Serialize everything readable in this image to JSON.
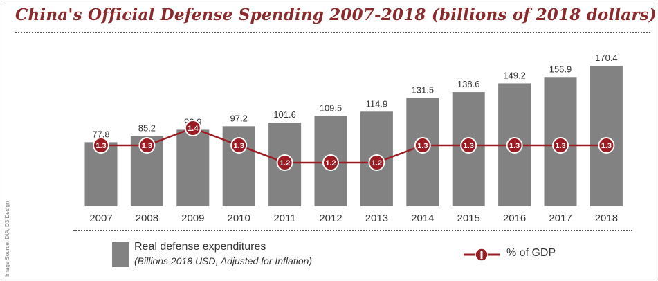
{
  "title": "China's Official Defense Spending 2007-2018 (billions of 2018 dollars)",
  "source_credit": "Image Source: DIA, D3 Design",
  "colors": {
    "bar": "#828282",
    "line": "#9b1c22",
    "title": "#8b2a2c"
  },
  "legend": {
    "bars_label": "Real defense expenditures",
    "bars_sublabel": "(Billions 2018 USD, Adjusted for Inflation)",
    "line_label": "% of GDP"
  },
  "chart_data": {
    "type": "bar",
    "title": "China's Official Defense Spending 2007-2018 (billions of 2018 dollars)",
    "categories": [
      "2007",
      "2008",
      "2009",
      "2010",
      "2011",
      "2012",
      "2013",
      "2014",
      "2015",
      "2016",
      "2017",
      "2018"
    ],
    "series": [
      {
        "name": "Real defense expenditures",
        "values": [
          77.8,
          85.2,
          92.9,
          97.2,
          101.6,
          109.5,
          114.9,
          131.5,
          138.6,
          149.2,
          156.9,
          170.4
        ]
      },
      {
        "name": "% of GDP",
        "type": "line",
        "values": [
          1.3,
          1.3,
          1.4,
          1.3,
          1.2,
          1.2,
          1.2,
          1.3,
          1.3,
          1.3,
          1.3,
          1.3
        ]
      }
    ],
    "bar_value_labels": [
      "77.8",
      "85.2",
      "92.9",
      "97.2",
      "101.6",
      "109.5",
      "114.9",
      "131.5",
      "138.6",
      "149.2",
      "156.9",
      "170.4"
    ],
    "gdp_value_labels": [
      "1.3",
      "1.3",
      "1.4",
      "1.3",
      "1.2",
      "1.2",
      "1.2",
      "1.3",
      "1.3",
      "1.3",
      "1.3",
      "1.3"
    ],
    "legend_position": "bottom",
    "grid": false
  }
}
